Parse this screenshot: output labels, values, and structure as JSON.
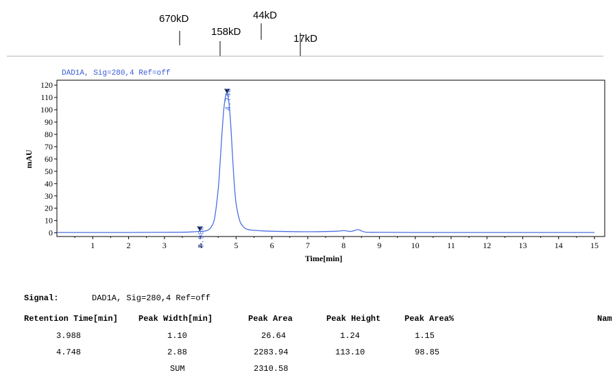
{
  "mw_markers": [
    {
      "label": "670kD",
      "row": "top"
    },
    {
      "label": "158kD",
      "row": "mid"
    },
    {
      "label": "44kD",
      "row": "upper"
    },
    {
      "label": "17kD",
      "row": "low"
    }
  ],
  "chart_data": {
    "type": "line",
    "signal_label": "DAD1A, Sig=280,4  Ref=off",
    "xlabel": "Time[min]",
    "ylabel": "mAU",
    "xlim": [
      0,
      15
    ],
    "ylim": [
      -3,
      124
    ],
    "x_ticks": [
      1,
      2,
      3,
      4,
      5,
      6,
      7,
      8,
      9,
      10,
      11,
      12,
      13,
      14,
      15
    ],
    "y_ticks": [
      0,
      10,
      20,
      30,
      40,
      50,
      60,
      70,
      80,
      90,
      100,
      110,
      120
    ],
    "series": [
      {
        "x": [
          0,
          1,
          2,
          3,
          3.5,
          3.8,
          3.95,
          3.988,
          4.05,
          4.2,
          4.3,
          4.4,
          4.5,
          4.55,
          4.6,
          4.65,
          4.7,
          4.748,
          4.8,
          4.85,
          4.9,
          4.95,
          5.0,
          5.1,
          5.2,
          5.3,
          5.5,
          6.0,
          7.0,
          7.8,
          8.0,
          8.2,
          8.4,
          8.5,
          8.6,
          8.7,
          9.0,
          10,
          12,
          15
        ],
        "y": [
          0.3,
          0.3,
          0.3,
          0.4,
          0.5,
          0.8,
          1.2,
          1.24,
          1.1,
          2.0,
          4.5,
          12,
          35,
          55,
          78,
          98,
          110,
          113.1,
          106,
          88,
          63,
          40,
          24,
          10,
          5,
          3,
          2,
          1.3,
          0.9,
          1.3,
          1.8,
          1.2,
          2.6,
          1.5,
          0.6,
          0.4,
          0.4,
          0.3,
          0.3,
          0.3
        ]
      }
    ],
    "peaks": [
      {
        "time": 3.988,
        "height": 1.24,
        "label": "3.988"
      },
      {
        "time": 4.748,
        "height": 113.1,
        "label": "4.748"
      }
    ],
    "line_color": "#4a6fe0"
  },
  "table": {
    "signal_label": "Signal:",
    "signal_value": "DAD1A, Sig=280,4  Ref=off",
    "headers": [
      "Retention Time[min]",
      "Peak Width[min]",
      "Peak Area",
      "Peak Height",
      "Peak Area%",
      "Nam"
    ],
    "rows": [
      [
        "3.988",
        "1.10",
        "26.64",
        "1.24",
        "1.15"
      ],
      [
        "4.748",
        "2.88",
        "2283.94",
        "113.10",
        "98.85"
      ]
    ],
    "sum_label": "SUM",
    "sum_value": "2310.58"
  }
}
